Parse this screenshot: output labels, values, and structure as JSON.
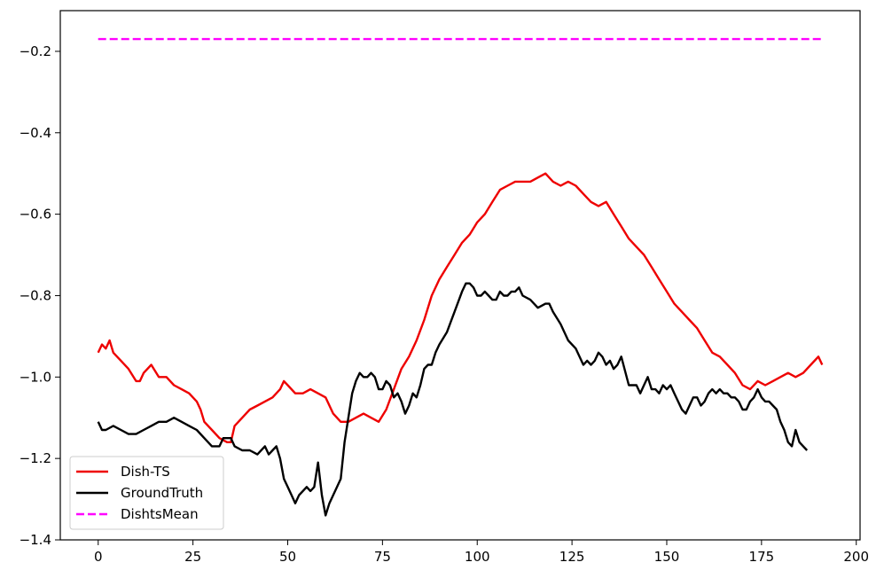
{
  "chart_data": {
    "type": "line",
    "title": "",
    "xlabel": "",
    "ylabel": "",
    "xlim": [
      -10,
      201
    ],
    "ylim": [
      -1.4,
      -0.1
    ],
    "xticks": [
      0,
      25,
      50,
      75,
      100,
      125,
      150,
      175,
      200
    ],
    "xtick_labels": [
      "0",
      "25",
      "50",
      "75",
      "100",
      "125",
      "150",
      "175",
      "200"
    ],
    "yticks": [
      -1.4,
      -1.2,
      -1.0,
      -0.8,
      -0.6,
      -0.4,
      -0.2
    ],
    "ytick_labels": [
      "−1.4",
      "−1.2",
      "−1.0",
      "−0.8",
      "−0.6",
      "−0.4",
      "−0.2"
    ],
    "grid": false,
    "legend_position": "lower-left",
    "series": [
      {
        "name": "Dish-TS",
        "color": "#ee0000",
        "style": "solid",
        "points": [
          [
            0,
            -0.94
          ],
          [
            1,
            -0.92
          ],
          [
            2,
            -0.93
          ],
          [
            3,
            -0.91
          ],
          [
            4,
            -0.94
          ],
          [
            6,
            -0.96
          ],
          [
            8,
            -0.98
          ],
          [
            10,
            -1.01
          ],
          [
            11,
            -1.01
          ],
          [
            12,
            -0.99
          ],
          [
            14,
            -0.97
          ],
          [
            16,
            -1.0
          ],
          [
            18,
            -1.0
          ],
          [
            20,
            -1.02
          ],
          [
            22,
            -1.03
          ],
          [
            24,
            -1.04
          ],
          [
            25,
            -1.05
          ],
          [
            26,
            -1.06
          ],
          [
            27,
            -1.08
          ],
          [
            28,
            -1.11
          ],
          [
            30,
            -1.13
          ],
          [
            32,
            -1.15
          ],
          [
            34,
            -1.16
          ],
          [
            35,
            -1.16
          ],
          [
            36,
            -1.12
          ],
          [
            38,
            -1.1
          ],
          [
            40,
            -1.08
          ],
          [
            42,
            -1.07
          ],
          [
            44,
            -1.06
          ],
          [
            46,
            -1.05
          ],
          [
            48,
            -1.03
          ],
          [
            49,
            -1.01
          ],
          [
            50,
            -1.02
          ],
          [
            52,
            -1.04
          ],
          [
            54,
            -1.04
          ],
          [
            56,
            -1.03
          ],
          [
            58,
            -1.04
          ],
          [
            60,
            -1.05
          ],
          [
            62,
            -1.09
          ],
          [
            64,
            -1.11
          ],
          [
            66,
            -1.11
          ],
          [
            68,
            -1.1
          ],
          [
            70,
            -1.09
          ],
          [
            72,
            -1.1
          ],
          [
            74,
            -1.11
          ],
          [
            76,
            -1.08
          ],
          [
            78,
            -1.03
          ],
          [
            80,
            -0.98
          ],
          [
            82,
            -0.95
          ],
          [
            84,
            -0.91
          ],
          [
            86,
            -0.86
          ],
          [
            88,
            -0.8
          ],
          [
            90,
            -0.76
          ],
          [
            92,
            -0.73
          ],
          [
            94,
            -0.7
          ],
          [
            96,
            -0.67
          ],
          [
            98,
            -0.65
          ],
          [
            100,
            -0.62
          ],
          [
            102,
            -0.6
          ],
          [
            104,
            -0.57
          ],
          [
            106,
            -0.54
          ],
          [
            108,
            -0.53
          ],
          [
            110,
            -0.52
          ],
          [
            112,
            -0.52
          ],
          [
            114,
            -0.52
          ],
          [
            116,
            -0.51
          ],
          [
            118,
            -0.5
          ],
          [
            120,
            -0.52
          ],
          [
            122,
            -0.53
          ],
          [
            124,
            -0.52
          ],
          [
            126,
            -0.53
          ],
          [
            128,
            -0.55
          ],
          [
            130,
            -0.57
          ],
          [
            132,
            -0.58
          ],
          [
            134,
            -0.57
          ],
          [
            136,
            -0.6
          ],
          [
            138,
            -0.63
          ],
          [
            140,
            -0.66
          ],
          [
            142,
            -0.68
          ],
          [
            144,
            -0.7
          ],
          [
            146,
            -0.73
          ],
          [
            148,
            -0.76
          ],
          [
            150,
            -0.79
          ],
          [
            152,
            -0.82
          ],
          [
            154,
            -0.84
          ],
          [
            156,
            -0.86
          ],
          [
            158,
            -0.88
          ],
          [
            160,
            -0.91
          ],
          [
            162,
            -0.94
          ],
          [
            164,
            -0.95
          ],
          [
            166,
            -0.97
          ],
          [
            168,
            -0.99
          ],
          [
            170,
            -1.02
          ],
          [
            172,
            -1.03
          ],
          [
            174,
            -1.01
          ],
          [
            176,
            -1.02
          ],
          [
            178,
            -1.01
          ],
          [
            180,
            -1.0
          ],
          [
            182,
            -0.99
          ],
          [
            184,
            -1.0
          ],
          [
            186,
            -0.99
          ],
          [
            188,
            -0.97
          ],
          [
            190,
            -0.95
          ],
          [
            191,
            -0.97
          ]
        ]
      },
      {
        "name": "GroundTruth",
        "color": "#000000",
        "style": "solid",
        "points": [
          [
            0,
            -1.11
          ],
          [
            1,
            -1.13
          ],
          [
            2,
            -1.13
          ],
          [
            4,
            -1.12
          ],
          [
            6,
            -1.13
          ],
          [
            8,
            -1.14
          ],
          [
            10,
            -1.14
          ],
          [
            12,
            -1.13
          ],
          [
            14,
            -1.12
          ],
          [
            16,
            -1.11
          ],
          [
            18,
            -1.11
          ],
          [
            20,
            -1.1
          ],
          [
            22,
            -1.11
          ],
          [
            24,
            -1.12
          ],
          [
            26,
            -1.13
          ],
          [
            28,
            -1.15
          ],
          [
            30,
            -1.17
          ],
          [
            32,
            -1.17
          ],
          [
            33,
            -1.15
          ],
          [
            34,
            -1.15
          ],
          [
            35,
            -1.15
          ],
          [
            36,
            -1.17
          ],
          [
            38,
            -1.18
          ],
          [
            40,
            -1.18
          ],
          [
            42,
            -1.19
          ],
          [
            44,
            -1.17
          ],
          [
            45,
            -1.19
          ],
          [
            46,
            -1.18
          ],
          [
            47,
            -1.17
          ],
          [
            48,
            -1.2
          ],
          [
            49,
            -1.25
          ],
          [
            50,
            -1.27
          ],
          [
            51,
            -1.29
          ],
          [
            52,
            -1.31
          ],
          [
            53,
            -1.29
          ],
          [
            54,
            -1.28
          ],
          [
            55,
            -1.27
          ],
          [
            56,
            -1.28
          ],
          [
            57,
            -1.27
          ],
          [
            58,
            -1.21
          ],
          [
            59,
            -1.29
          ],
          [
            60,
            -1.34
          ],
          [
            61,
            -1.31
          ],
          [
            62,
            -1.29
          ],
          [
            63,
            -1.27
          ],
          [
            64,
            -1.25
          ],
          [
            65,
            -1.16
          ],
          [
            66,
            -1.1
          ],
          [
            67,
            -1.04
          ],
          [
            68,
            -1.01
          ],
          [
            69,
            -0.99
          ],
          [
            70,
            -1.0
          ],
          [
            71,
            -1.0
          ],
          [
            72,
            -0.99
          ],
          [
            73,
            -1.0
          ],
          [
            74,
            -1.03
          ],
          [
            75,
            -1.03
          ],
          [
            76,
            -1.01
          ],
          [
            77,
            -1.02
          ],
          [
            78,
            -1.05
          ],
          [
            79,
            -1.04
          ],
          [
            80,
            -1.06
          ],
          [
            81,
            -1.09
          ],
          [
            82,
            -1.07
          ],
          [
            83,
            -1.04
          ],
          [
            84,
            -1.05
          ],
          [
            85,
            -1.02
          ],
          [
            86,
            -0.98
          ],
          [
            87,
            -0.97
          ],
          [
            88,
            -0.97
          ],
          [
            89,
            -0.94
          ],
          [
            90,
            -0.92
          ],
          [
            92,
            -0.89
          ],
          [
            94,
            -0.84
          ],
          [
            96,
            -0.79
          ],
          [
            97,
            -0.77
          ],
          [
            98,
            -0.77
          ],
          [
            99,
            -0.78
          ],
          [
            100,
            -0.8
          ],
          [
            101,
            -0.8
          ],
          [
            102,
            -0.79
          ],
          [
            103,
            -0.8
          ],
          [
            104,
            -0.81
          ],
          [
            105,
            -0.81
          ],
          [
            106,
            -0.79
          ],
          [
            107,
            -0.8
          ],
          [
            108,
            -0.8
          ],
          [
            109,
            -0.79
          ],
          [
            110,
            -0.79
          ],
          [
            111,
            -0.78
          ],
          [
            112,
            -0.8
          ],
          [
            114,
            -0.81
          ],
          [
            116,
            -0.83
          ],
          [
            118,
            -0.82
          ],
          [
            119,
            -0.82
          ],
          [
            120,
            -0.84
          ],
          [
            122,
            -0.87
          ],
          [
            124,
            -0.91
          ],
          [
            126,
            -0.93
          ],
          [
            128,
            -0.97
          ],
          [
            129,
            -0.96
          ],
          [
            130,
            -0.97
          ],
          [
            131,
            -0.96
          ],
          [
            132,
            -0.94
          ],
          [
            133,
            -0.95
          ],
          [
            134,
            -0.97
          ],
          [
            135,
            -0.96
          ],
          [
            136,
            -0.98
          ],
          [
            137,
            -0.97
          ],
          [
            138,
            -0.95
          ],
          [
            140,
            -1.02
          ],
          [
            142,
            -1.02
          ],
          [
            143,
            -1.04
          ],
          [
            144,
            -1.02
          ],
          [
            145,
            -1.0
          ],
          [
            146,
            -1.03
          ],
          [
            147,
            -1.03
          ],
          [
            148,
            -1.04
          ],
          [
            149,
            -1.02
          ],
          [
            150,
            -1.03
          ],
          [
            151,
            -1.02
          ],
          [
            152,
            -1.04
          ],
          [
            154,
            -1.08
          ],
          [
            155,
            -1.09
          ],
          [
            156,
            -1.07
          ],
          [
            157,
            -1.05
          ],
          [
            158,
            -1.05
          ],
          [
            159,
            -1.07
          ],
          [
            160,
            -1.06
          ],
          [
            161,
            -1.04
          ],
          [
            162,
            -1.03
          ],
          [
            163,
            -1.04
          ],
          [
            164,
            -1.03
          ],
          [
            165,
            -1.04
          ],
          [
            166,
            -1.04
          ],
          [
            167,
            -1.05
          ],
          [
            168,
            -1.05
          ],
          [
            169,
            -1.06
          ],
          [
            170,
            -1.08
          ],
          [
            171,
            -1.08
          ],
          [
            172,
            -1.06
          ],
          [
            173,
            -1.05
          ],
          [
            174,
            -1.03
          ],
          [
            175,
            -1.05
          ],
          [
            176,
            -1.06
          ],
          [
            177,
            -1.06
          ],
          [
            178,
            -1.07
          ],
          [
            179,
            -1.08
          ],
          [
            180,
            -1.11
          ],
          [
            181,
            -1.13
          ],
          [
            182,
            -1.16
          ],
          [
            183,
            -1.17
          ],
          [
            184,
            -1.13
          ],
          [
            185,
            -1.16
          ],
          [
            186,
            -1.17
          ],
          [
            187,
            -1.18
          ]
        ]
      },
      {
        "name": "DishtsMean",
        "color": "#ff00ff",
        "style": "dashed",
        "points": [
          [
            0,
            -0.17
          ],
          [
            191,
            -0.17
          ]
        ]
      }
    ]
  }
}
